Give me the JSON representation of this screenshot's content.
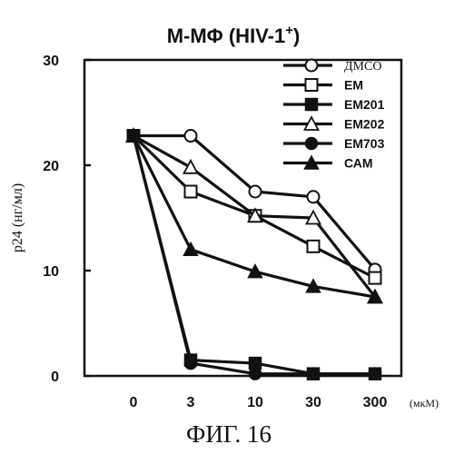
{
  "chart_data": {
    "type": "line",
    "title_main": "M-MΦ (HIV-1",
    "title_sup": "+",
    "title_close": ")",
    "ylabel": "p24 (нг/мл)",
    "x_unit": "(мкМ)",
    "caption": "ФИГ. 16",
    "categories": [
      "0",
      "3",
      "10",
      "30",
      "300"
    ],
    "ylim": [
      0,
      30
    ],
    "yticks": [
      0,
      10,
      20,
      30
    ],
    "grid": false,
    "legend_position": "top-right",
    "series": [
      {
        "name": "ДМСО",
        "marker": "circle-open",
        "values": [
          22.8,
          22.8,
          17.5,
          17.0,
          10.1
        ]
      },
      {
        "name": "ЕМ",
        "marker": "square-open",
        "values": [
          22.8,
          17.5,
          15.2,
          12.3,
          9.3
        ]
      },
      {
        "name": "ЕМ201",
        "marker": "square-filled",
        "values": [
          22.8,
          1.5,
          1.2,
          0.2,
          0.2
        ]
      },
      {
        "name": "ЕМ202",
        "marker": "triangle-open",
        "values": [
          22.8,
          19.8,
          15.2,
          15.0,
          7.5
        ]
      },
      {
        "name": "ЕМ703",
        "marker": "circle-filled",
        "values": [
          22.8,
          1.2,
          0.2,
          0.2,
          0.2
        ]
      },
      {
        "name": "САМ",
        "marker": "triangle-filled",
        "values": [
          22.8,
          12.0,
          9.9,
          8.5,
          7.5
        ]
      }
    ]
  }
}
